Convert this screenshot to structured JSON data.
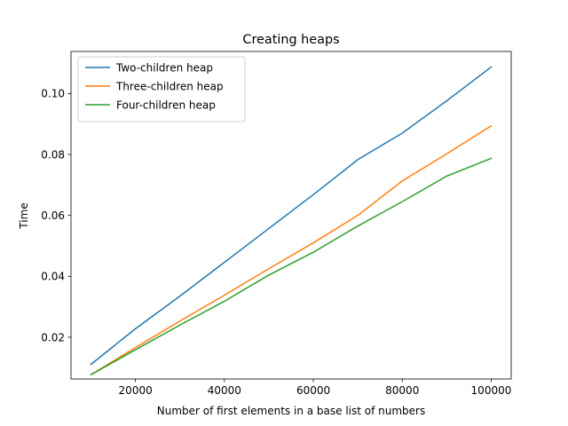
{
  "chart_data": {
    "type": "line",
    "title": "Creating heaps",
    "xlabel": "Number of first elements in a base list of numbers",
    "ylabel": "Time",
    "xlim": [
      5500,
      104500
    ],
    "ylim": [
      0.0063,
      0.1138
    ],
    "xticks": [
      20000,
      40000,
      60000,
      80000,
      100000
    ],
    "yticks": [
      0.02,
      0.04,
      0.06,
      0.08,
      0.1
    ],
    "ytick_labels": [
      "0.02",
      "0.04",
      "0.06",
      "0.08",
      "0.10"
    ],
    "grid": false,
    "legend_position": "top-left",
    "x": [
      10000,
      20000,
      30000,
      40000,
      50000,
      60000,
      70000,
      80000,
      90000,
      100000
    ],
    "series": [
      {
        "name": "Two-children heap",
        "color": "#1f77b4",
        "values": [
          0.0111,
          0.0228,
          0.0335,
          0.0446,
          0.0557,
          0.0668,
          0.0783,
          0.087,
          0.0976,
          0.1087
        ]
      },
      {
        "name": "Three-children heap",
        "color": "#ff7f0e",
        "values": [
          0.0077,
          0.0166,
          0.0253,
          0.0338,
          0.0425,
          0.051,
          0.06,
          0.0713,
          0.0802,
          0.0894
        ]
      },
      {
        "name": "Four-children heap",
        "color": "#2ca02c",
        "values": [
          0.0077,
          0.0159,
          0.024,
          0.0318,
          0.0404,
          0.0479,
          0.0565,
          0.0645,
          0.0729,
          0.0787
        ]
      }
    ]
  }
}
